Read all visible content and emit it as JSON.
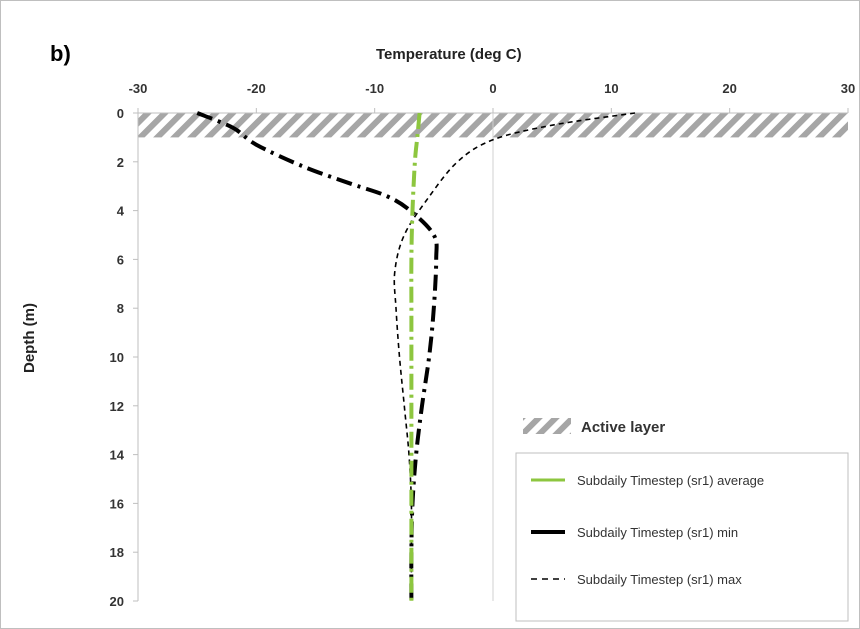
{
  "panel_label": "b)",
  "chart_data": {
    "type": "line",
    "title": "Temperature (deg C)",
    "xlabel": "Temperature (deg C)",
    "ylabel": "Depth (m)",
    "xlim": [
      -30,
      30
    ],
    "ylim": [
      0,
      20
    ],
    "x_axis_position": "top",
    "y_inverted": true,
    "xticks": [
      -30,
      -20,
      -10,
      0,
      10,
      20,
      30
    ],
    "yticks": [
      0,
      2,
      4,
      6,
      8,
      10,
      12,
      14,
      16,
      18,
      20
    ],
    "grid": false,
    "legend_position": "bottom-right",
    "active_layer": {
      "label": "Active layer",
      "depth_range": [
        0,
        1
      ]
    },
    "series": [
      {
        "name": "Subdaily Timestep (sr1) average",
        "color": "#8dc63f",
        "style": "dash-dot",
        "points": [
          [
            -6.2,
            0
          ],
          [
            -6.4,
            1
          ],
          [
            -6.6,
            2
          ],
          [
            -6.8,
            4
          ],
          [
            -6.9,
            6
          ],
          [
            -6.9,
            8
          ],
          [
            -6.9,
            10
          ],
          [
            -6.9,
            12
          ],
          [
            -6.9,
            14
          ],
          [
            -6.9,
            16
          ],
          [
            -6.9,
            18
          ],
          [
            -6.9,
            20
          ]
        ]
      },
      {
        "name": "Subdaily Timestep (sr1) min",
        "color": "#000000",
        "style": "dash-dot",
        "points": [
          [
            -25,
            0
          ],
          [
            -22,
            0.6
          ],
          [
            -20,
            1.3
          ],
          [
            -16,
            2.2
          ],
          [
            -12,
            2.9
          ],
          [
            -9,
            3.4
          ],
          [
            -7,
            4.0
          ],
          [
            -5,
            5.0
          ],
          [
            -4.8,
            6
          ],
          [
            -5,
            8
          ],
          [
            -5.4,
            10
          ],
          [
            -6,
            12
          ],
          [
            -6.5,
            14
          ],
          [
            -6.8,
            16
          ],
          [
            -6.9,
            18
          ],
          [
            -6.9,
            20
          ]
        ]
      },
      {
        "name": "Subdaily Timestep (sr1) max",
        "color": "#000000",
        "style": "dashed",
        "points": [
          [
            12,
            0
          ],
          [
            5,
            0.5
          ],
          [
            0,
            1.1
          ],
          [
            -3,
            2
          ],
          [
            -5.5,
            3.5
          ],
          [
            -7.5,
            5
          ],
          [
            -8.3,
            6.5
          ],
          [
            -8.2,
            8
          ],
          [
            -7.9,
            10
          ],
          [
            -7.5,
            12
          ],
          [
            -7.1,
            14
          ],
          [
            -6.9,
            16
          ],
          [
            -6.9,
            18
          ],
          [
            -6.9,
            20
          ]
        ]
      }
    ]
  }
}
